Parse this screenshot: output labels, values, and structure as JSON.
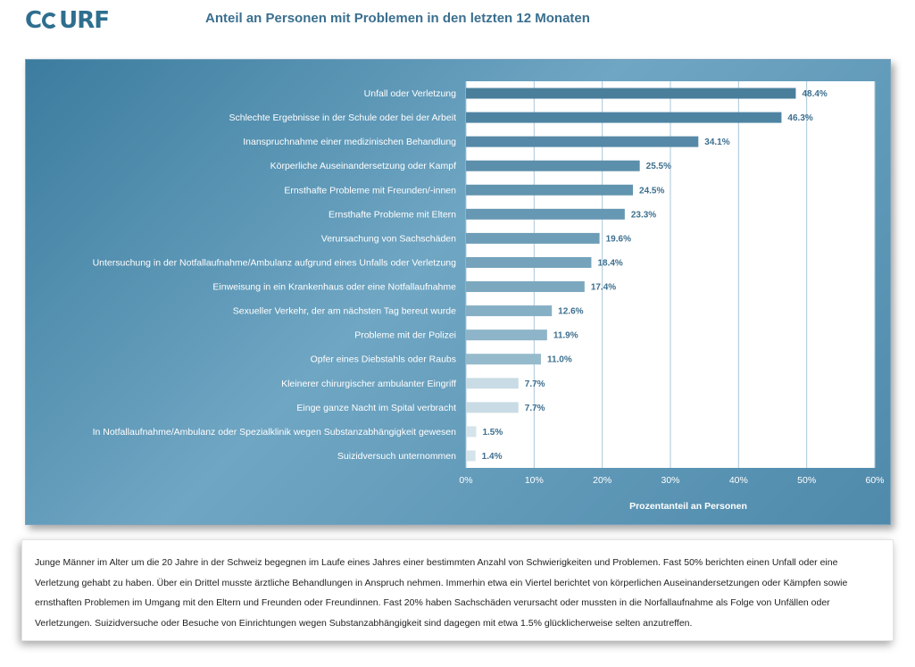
{
  "header": {
    "logo_text": "CSURF",
    "title": "Anteil an Personen mit Problemen in den letzten 12 Monaten"
  },
  "chart_data": {
    "type": "bar",
    "orientation": "horizontal",
    "title": "Anteil an Personen mit Problemen in den letzten 12 Monaten",
    "xlabel": "Prozentanteil an Personen",
    "ylabel": "",
    "xlim": [
      0,
      60
    ],
    "xticks": [
      "0%",
      "10%",
      "20%",
      "30%",
      "40%",
      "50%",
      "60%"
    ],
    "grid": "vertical",
    "categories": [
      "Unfall oder Verletzung",
      "Schlechte Ergebnisse in der Schule oder bei der Arbeit",
      "Inanspruchnahme einer medizinischen Behandlung",
      "Körperliche Auseinandersetzung oder Kampf",
      "Ernsthafte Probleme mit Freunden/-innen",
      "Ernsthafte Probleme mit Eltern",
      "Verursachung von Sachschäden",
      "Untersuchung in der Notfallaufnahme/Ambulanz aufgrund eines Unfalls oder Verletzung",
      "Einweisung in ein Krankenhaus oder eine Notfallaufnahme",
      "Sexueller Verkehr, der am nächsten Tag bereut wurde",
      "Probleme mit der Polizei",
      "Opfer eines Diebstahls oder Raubs",
      "Kleinerer chirurgischer ambulanter Eingriff",
      "Einge ganze Nacht im Spital verbracht",
      "In Notfallaufnahme/Ambulanz oder Spezialklinik wegen Substanzabhängigkeit gewesen",
      "Suizidversuch unternommen"
    ],
    "values": [
      48.4,
      46.3,
      34.1,
      25.5,
      24.5,
      23.3,
      19.6,
      18.4,
      17.4,
      12.6,
      11.9,
      11.0,
      7.7,
      7.7,
      1.5,
      1.4
    ],
    "data_labels": [
      "48.4%",
      "46.3%",
      "34.1%",
      "25.5%",
      "24.5%",
      "23.3%",
      "19.6%",
      "18.4%",
      "17.4%",
      "12.6%",
      "11.9%",
      "11.0%",
      "7.7%",
      "7.7%",
      "1.5%",
      "1.4%"
    ],
    "colors": {
      "bar_gradient": [
        "#4a7f9c",
        "#4e84a2",
        "#5689a7",
        "#5c8fab",
        "#6194af",
        "#6798b3",
        "#6d9db7",
        "#74a3bb",
        "#7ba8bf",
        "#85afc4",
        "#8db4c8",
        "#95bacc",
        "#c9dce5",
        "#c9dce5",
        "#d5e3ea",
        "#d5e3ea"
      ],
      "value_label": "#3d6f8e",
      "plot_bg": "#ffffff",
      "grid": "#a9c7d9"
    }
  },
  "description": "Junge Männer im Alter um die 20 Jahre in der Schweiz begegnen im Laufe eines Jahres einer bestimmten Anzahl von Schwierigkeiten und Problemen. Fast 50% berichten einen Unfall oder eine Verletzung gehabt zu haben. Über ein Drittel musste ärztliche Behandlungen in Anspruch nehmen. Immerhin etwa ein Viertel berichtet von körperlichen Auseinandersetzungen oder Kämpfen sowie ernsthaften Problemen im Umgang mit den Eltern und Freunden oder Freundinnen. Fast 20% haben Sachschäden verursacht oder mussten in die Norfallaufnahme als Folge von Unfällen oder Verletzungen. Suizidversuche oder Besuche von Einrichtungen wegen Substanzabhängigkeit sind dagegen mit etwa 1.5% glücklicherweise selten anzutreffen."
}
